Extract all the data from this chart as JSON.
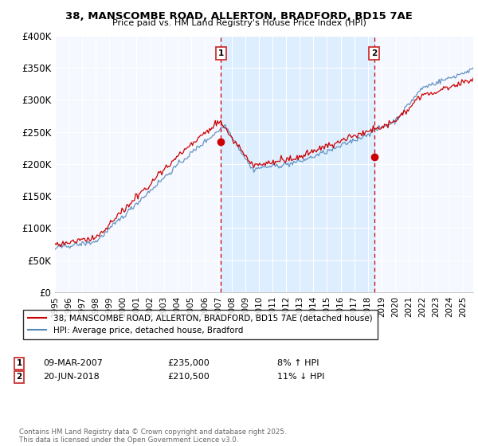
{
  "title": "38, MANSCOMBE ROAD, ALLERTON, BRADFORD, BD15 7AE",
  "subtitle": "Price paid vs. HM Land Registry's House Price Index (HPI)",
  "ylabel_ticks": [
    "£0",
    "£50K",
    "£100K",
    "£150K",
    "£200K",
    "£250K",
    "£300K",
    "£350K",
    "£400K"
  ],
  "y_values": [
    0,
    50000,
    100000,
    150000,
    200000,
    250000,
    300000,
    350000,
    400000
  ],
  "ylim": [
    0,
    400000
  ],
  "xlim_start": 1995.0,
  "xlim_end": 2025.75,
  "sale1_year": 2007.19,
  "sale1_price": 235000,
  "sale1_label": "1",
  "sale1_date": "09-MAR-2007",
  "sale1_hpi_pct": "8% ↑ HPI",
  "sale2_year": 2018.47,
  "sale2_price": 210500,
  "sale2_label": "2",
  "sale2_date": "20-JUN-2018",
  "sale2_hpi_pct": "11% ↓ HPI",
  "line1_label": "38, MANSCOMBE ROAD, ALLERTON, BRADFORD, BD15 7AE (detached house)",
  "line2_label": "HPI: Average price, detached house, Bradford",
  "red_color": "#cc0000",
  "blue_color": "#5588bb",
  "shade_color": "#ddeeff",
  "grid_color": "#dddddd",
  "background_color": "#f5f8ff",
  "footnote": "Contains HM Land Registry data © Crown copyright and database right 2025.\nThis data is licensed under the Open Government Licence v3.0.",
  "x_tick_years": [
    1995,
    1996,
    1997,
    1998,
    1999,
    2000,
    2001,
    2002,
    2003,
    2004,
    2005,
    2006,
    2007,
    2008,
    2009,
    2010,
    2011,
    2012,
    2013,
    2014,
    2015,
    2016,
    2017,
    2018,
    2019,
    2020,
    2021,
    2022,
    2023,
    2024,
    2025
  ]
}
